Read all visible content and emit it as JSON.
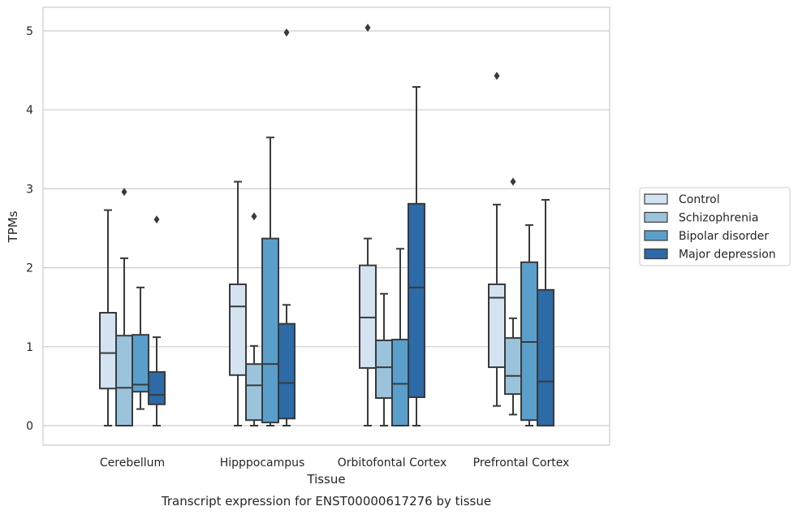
{
  "chart_data": {
    "type": "box",
    "caption": "Transcript expression for ENST00000617276 by tissue",
    "xlabel": "Tissue",
    "ylabel": "TPMs",
    "ylim": [
      -0.25,
      5.3
    ],
    "yticks": [
      0,
      1,
      2,
      3,
      4,
      5
    ],
    "grid": "horizontal",
    "legend_placement": "right",
    "categories": [
      "Cerebellum",
      "Hipppocampus",
      "Orbitofontal Cortex",
      "Prefrontal Cortex"
    ],
    "series": [
      {
        "name": "Control",
        "color": "#d4e3f2",
        "boxes": [
          {
            "min": 0,
            "q1": 0.47,
            "median": 0.92,
            "q3": 1.43,
            "max": 2.73,
            "outliers": []
          },
          {
            "min": 0,
            "q1": 0.64,
            "median": 1.51,
            "q3": 1.79,
            "max": 3.09,
            "outliers": []
          },
          {
            "min": 0,
            "q1": 0.73,
            "median": 1.37,
            "q3": 2.03,
            "max": 2.37,
            "outliers": [
              5.04
            ]
          },
          {
            "min": 0.25,
            "q1": 0.74,
            "median": 1.62,
            "q3": 1.79,
            "max": 2.8,
            "outliers": [
              4.43
            ]
          }
        ]
      },
      {
        "name": "Schizophrenia",
        "color": "#9bc4dc",
        "boxes": [
          {
            "min": 0,
            "q1": 0,
            "median": 0.48,
            "q3": 1.14,
            "max": 2.12,
            "outliers": [
              2.96
            ]
          },
          {
            "min": 0,
            "q1": 0.07,
            "median": 0.51,
            "q3": 0.78,
            "max": 1.01,
            "outliers": [
              2.65
            ]
          },
          {
            "min": 0,
            "q1": 0.35,
            "median": 0.74,
            "q3": 1.08,
            "max": 1.67,
            "outliers": []
          },
          {
            "min": 0.14,
            "q1": 0.4,
            "median": 0.63,
            "q3": 1.11,
            "max": 1.36,
            "outliers": [
              3.09
            ]
          }
        ]
      },
      {
        "name": "Bipolar disorder",
        "color": "#5a9fcb",
        "boxes": [
          {
            "min": 0.21,
            "q1": 0.43,
            "median": 0.52,
            "q3": 1.15,
            "max": 1.75,
            "outliers": []
          },
          {
            "min": 0,
            "q1": 0.04,
            "median": 0.78,
            "q3": 2.37,
            "max": 3.65,
            "outliers": []
          },
          {
            "min": 0,
            "q1": 0,
            "median": 0.53,
            "q3": 1.09,
            "max": 2.24,
            "outliers": []
          },
          {
            "min": 0,
            "q1": 0.07,
            "median": 1.06,
            "q3": 2.07,
            "max": 2.54,
            "outliers": []
          }
        ]
      },
      {
        "name": "Major depression",
        "color": "#2c6aa8",
        "boxes": [
          {
            "min": 0,
            "q1": 0.27,
            "median": 0.39,
            "q3": 0.68,
            "max": 1.12,
            "outliers": [
              2.61
            ]
          },
          {
            "min": 0,
            "q1": 0.09,
            "median": 0.54,
            "q3": 1.29,
            "max": 1.53,
            "outliers": [
              4.98
            ]
          },
          {
            "min": 0,
            "q1": 0.36,
            "median": 1.75,
            "q3": 2.81,
            "max": 4.29,
            "outliers": []
          },
          {
            "min": 0,
            "q1": 0,
            "median": 0.56,
            "q3": 1.72,
            "max": 2.86,
            "outliers": []
          }
        ]
      }
    ]
  }
}
